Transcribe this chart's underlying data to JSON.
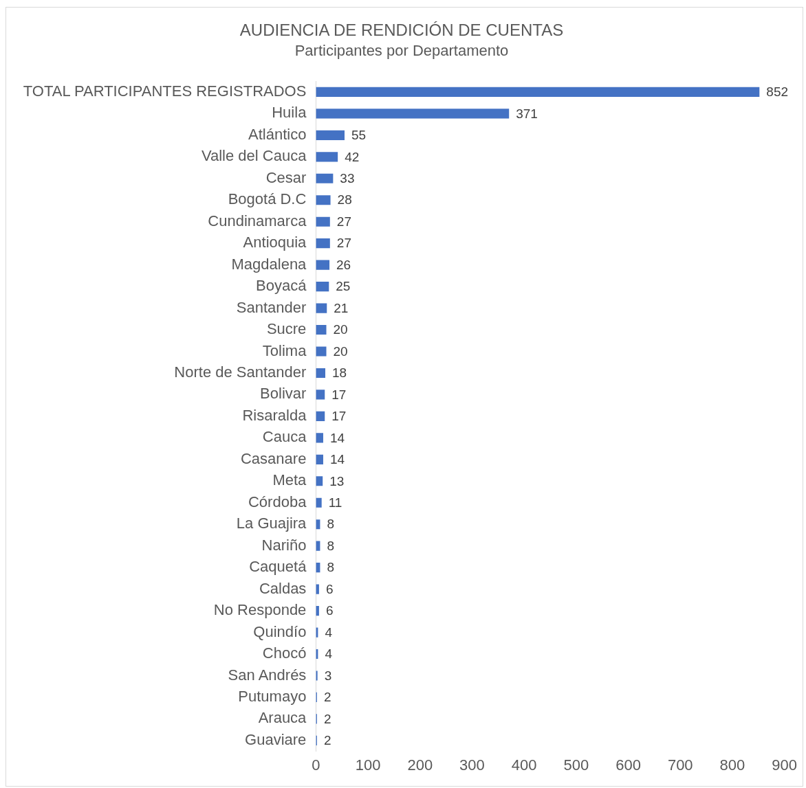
{
  "chart_data": {
    "type": "bar",
    "orientation": "horizontal",
    "title": "AUDIENCIA DE RENDICIÓN DE CUENTAS",
    "subtitle": "Participantes por Departamento",
    "categories": [
      "TOTAL PARTICIPANTES REGISTRADOS",
      "Huila",
      "Atlántico",
      "Valle del Cauca",
      "Cesar",
      "Bogotá D.C",
      "Cundinamarca",
      "Antioquia",
      "Magdalena",
      "Boyacá",
      "Santander",
      "Sucre",
      "Tolima",
      "Norte de Santander",
      "Bolivar",
      "Risaralda",
      "Cauca",
      "Casanare",
      "Meta",
      "Córdoba",
      "La Guajira",
      "Nariño",
      "Caquetá",
      "Caldas",
      "No Responde",
      "Quindío",
      "Chocó",
      "San Andrés",
      "Putumayo",
      "Arauca",
      "Guaviare"
    ],
    "values": [
      852,
      371,
      55,
      42,
      33,
      28,
      27,
      27,
      26,
      25,
      21,
      20,
      20,
      18,
      17,
      17,
      14,
      14,
      13,
      11,
      8,
      8,
      8,
      6,
      6,
      4,
      4,
      3,
      2,
      2,
      2
    ],
    "color": "#4472c4",
    "xlim": [
      0,
      900
    ],
    "xticks": [
      0,
      100,
      200,
      300,
      400,
      500,
      600,
      700,
      800,
      900
    ],
    "grid": false,
    "legend": false,
    "data_labels": true
  }
}
